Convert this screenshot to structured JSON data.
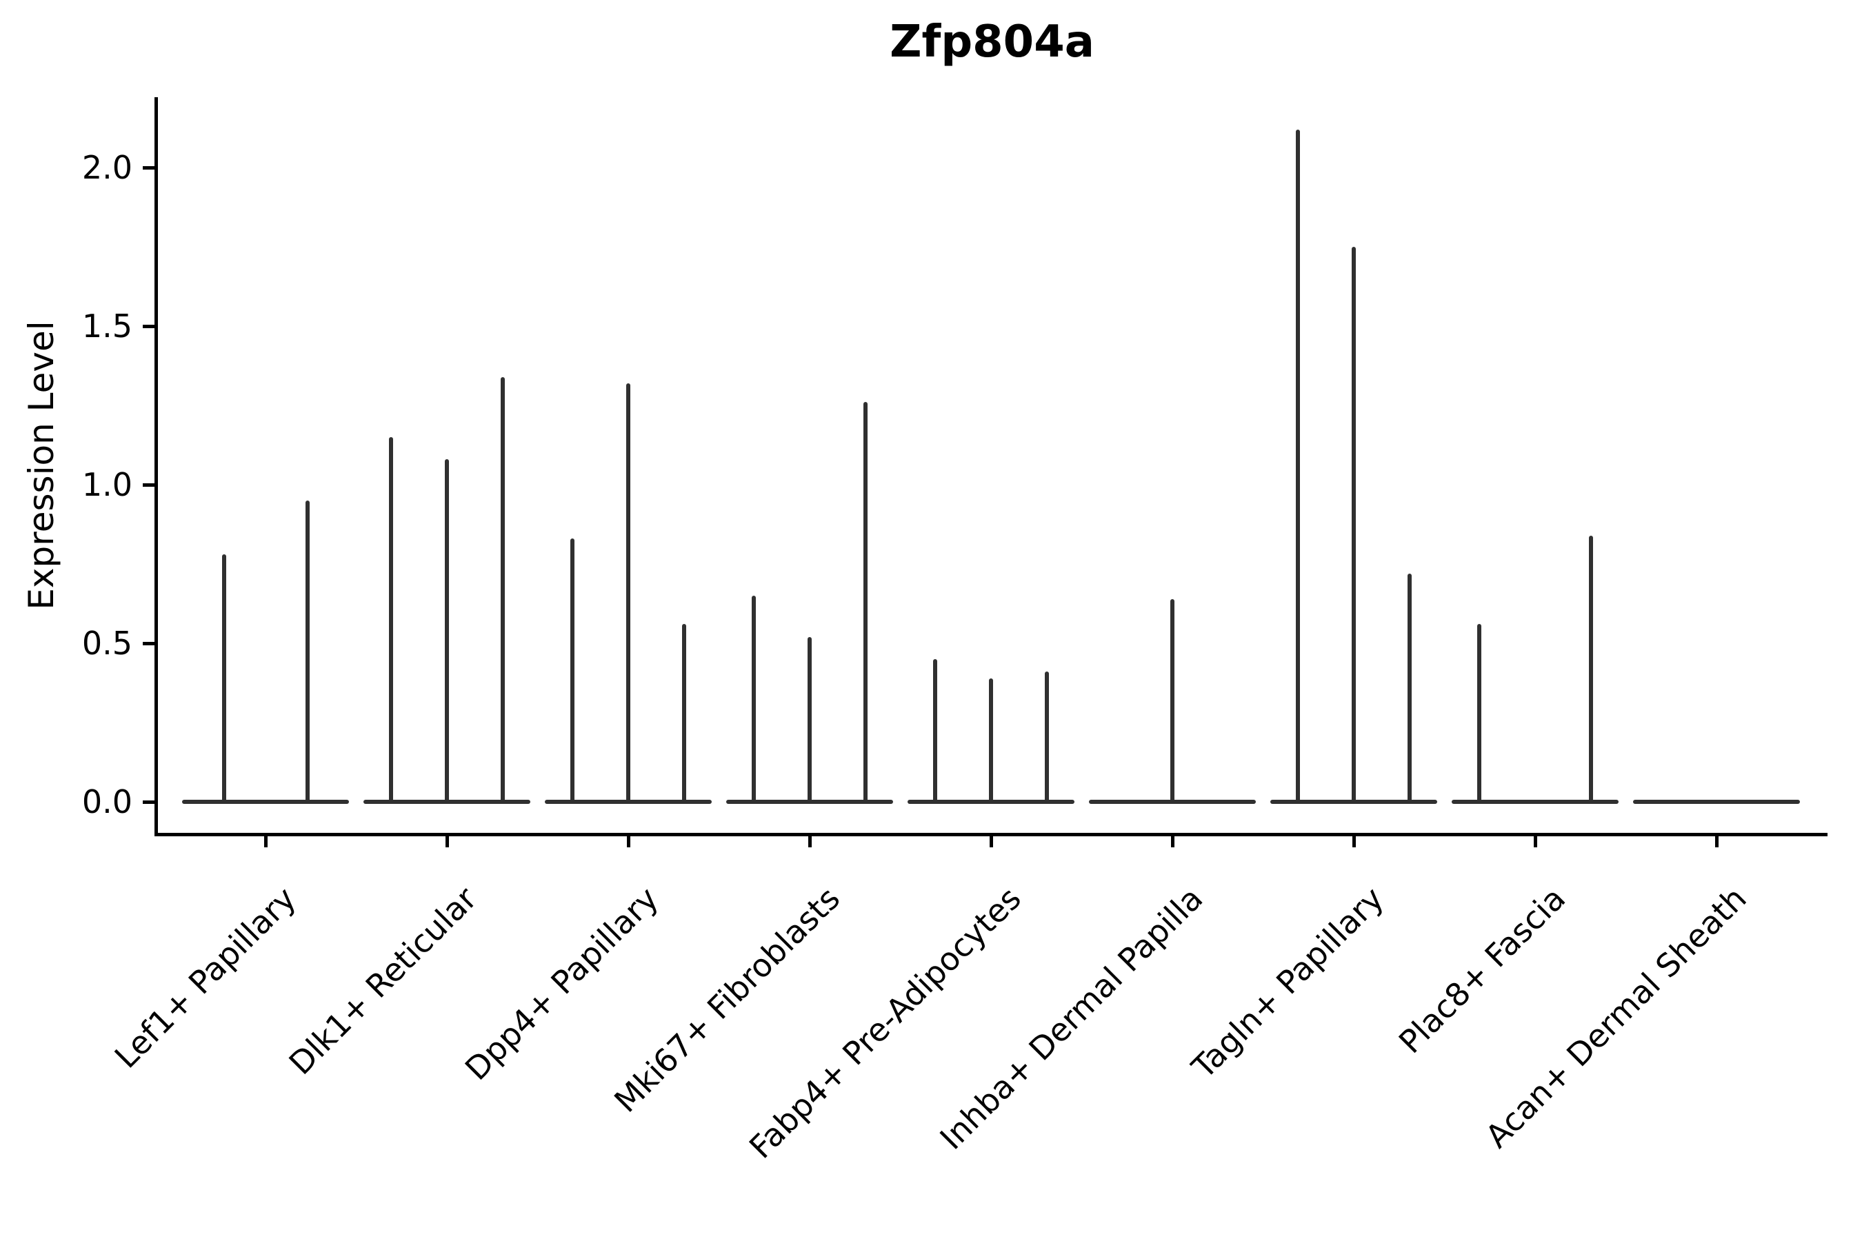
{
  "title": "Zfp804a",
  "ylabel": "Expression Level",
  "chart_data": {
    "type": "violin",
    "title": "Zfp804a",
    "xlabel": "",
    "ylabel": "Expression Level",
    "ytick_labels": [
      "0.0",
      "0.5",
      "1.0",
      "1.5",
      "2.0"
    ],
    "ytick_values": [
      0.0,
      0.5,
      1.0,
      1.5,
      2.0
    ],
    "ylim": [
      -0.1,
      2.22
    ],
    "grid": false,
    "legend": "none",
    "description": "Sparse single-cell expression violins: each category holds 2-3 needle-thin violins; flat base at 0 with a vertical spike up to the max expressed value. Zero means that violin has no spike.",
    "categories": [
      "Lef1+ Papillary",
      "Dlk1+ Reticular",
      "Dpp4+ Papillary",
      "Mki67+ Fibroblasts",
      "Fabp4+ Pre-Adipocytes",
      "Inhba+ Dermal Papilla",
      "Tagln+ Papillary",
      "Plac8+ Fascia",
      "Acan+ Dermal Sheath"
    ],
    "groups": [
      {
        "label": "Lef1+ Papillary",
        "violin_spike_maxima": [
          0.78,
          0.95
        ]
      },
      {
        "label": "Dlk1+ Reticular",
        "violin_spike_maxima": [
          1.15,
          1.08,
          1.34
        ]
      },
      {
        "label": "Dpp4+ Papillary",
        "violin_spike_maxima": [
          0.83,
          1.32,
          0.56
        ]
      },
      {
        "label": "Mki67+ Fibroblasts",
        "violin_spike_maxima": [
          0.65,
          0.52,
          1.26
        ]
      },
      {
        "label": "Fabp4+ Pre-Adipocytes",
        "violin_spike_maxima": [
          0.45,
          0.39,
          0.41
        ]
      },
      {
        "label": "Inhba+ Dermal Papilla",
        "violin_spike_maxima": [
          0,
          0.64,
          0
        ]
      },
      {
        "label": "Tagln+ Papillary",
        "violin_spike_maxima": [
          2.12,
          1.75,
          0.72
        ]
      },
      {
        "label": "Plac8+ Fascia",
        "violin_spike_maxima": [
          0.56,
          0,
          0.84
        ]
      },
      {
        "label": "Acan+ Dermal Sheath",
        "violin_spike_maxima": [
          0,
          0,
          0
        ]
      }
    ],
    "colors": {
      "violin": "#303030",
      "axis": "#000000",
      "text": "#000000",
      "background": "#ffffff"
    }
  }
}
